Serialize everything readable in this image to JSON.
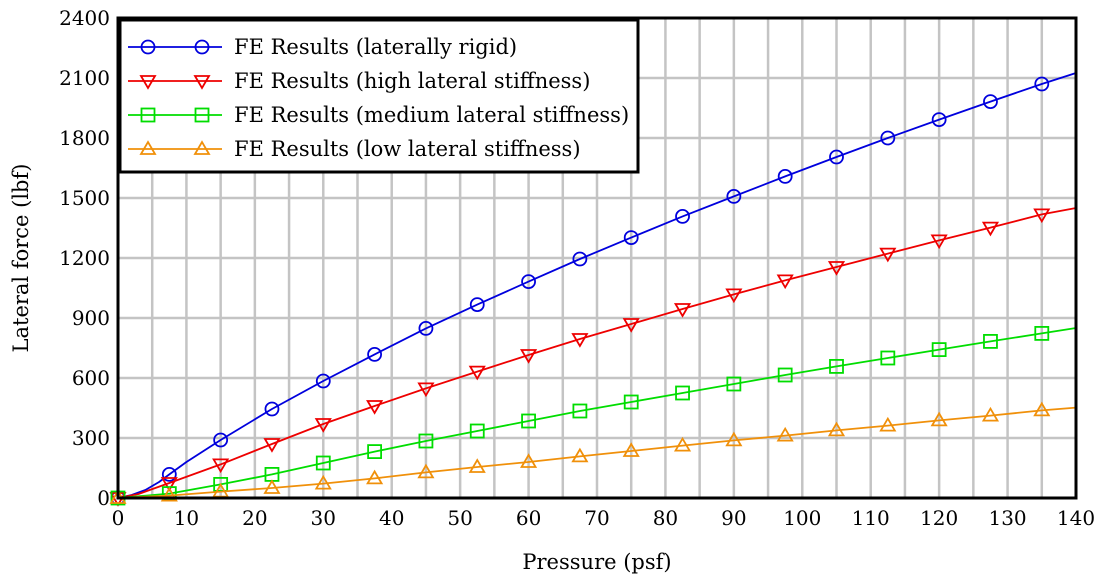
{
  "chart_data": {
    "type": "line",
    "xlabel": "Pressure (psf)",
    "ylabel": "Lateral force (lbf)",
    "xlim": [
      0,
      140
    ],
    "ylim": [
      0,
      2400
    ],
    "x_ticks": [
      0,
      10,
      20,
      30,
      40,
      50,
      60,
      70,
      80,
      90,
      100,
      110,
      120,
      130,
      140
    ],
    "y_ticks": [
      0,
      300,
      600,
      900,
      1200,
      1500,
      1800,
      2100,
      2400
    ],
    "x_minor_step": 5,
    "grid": true,
    "legend_position": "top-left",
    "series": [
      {
        "name": "FE Results (laterally rigid)",
        "color": "#0000dd",
        "marker": "circle",
        "line": [
          [
            0,
            0
          ],
          [
            2,
            15
          ],
          [
            4,
            40
          ],
          [
            6,
            80
          ],
          [
            7.5,
            118
          ],
          [
            10,
            180
          ],
          [
            15,
            290
          ],
          [
            22.5,
            445
          ],
          [
            30,
            585
          ],
          [
            37.5,
            718
          ],
          [
            45,
            848
          ],
          [
            52.5,
            967
          ],
          [
            60,
            1082
          ],
          [
            67.5,
            1195
          ],
          [
            75,
            1302
          ],
          [
            82.5,
            1408
          ],
          [
            90,
            1508
          ],
          [
            97.5,
            1608
          ],
          [
            105,
            1705
          ],
          [
            112.5,
            1800
          ],
          [
            120,
            1892
          ],
          [
            127.5,
            1982
          ],
          [
            135,
            2070
          ],
          [
            140,
            2125
          ]
        ],
        "points": [
          [
            0,
            0
          ],
          [
            7.5,
            118
          ],
          [
            15,
            290
          ],
          [
            22.5,
            445
          ],
          [
            30,
            585
          ],
          [
            37.5,
            718
          ],
          [
            45,
            848
          ],
          [
            52.5,
            967
          ],
          [
            60,
            1082
          ],
          [
            67.5,
            1195
          ],
          [
            75,
            1302
          ],
          [
            82.5,
            1408
          ],
          [
            90,
            1508
          ],
          [
            97.5,
            1608
          ],
          [
            105,
            1705
          ],
          [
            112.5,
            1800
          ],
          [
            120,
            1892
          ],
          [
            127.5,
            1982
          ],
          [
            135,
            2070
          ]
        ]
      },
      {
        "name": "FE Results (high lateral stiffness)",
        "color": "#ee0000",
        "marker": "triangle-down",
        "line": [
          [
            0,
            0
          ],
          [
            3,
            20
          ],
          [
            7.5,
            75
          ],
          [
            15,
            168
          ],
          [
            22.5,
            270
          ],
          [
            30,
            370
          ],
          [
            37.5,
            460
          ],
          [
            45,
            548
          ],
          [
            52.5,
            632
          ],
          [
            60,
            715
          ],
          [
            67.5,
            795
          ],
          [
            75,
            870
          ],
          [
            82.5,
            945
          ],
          [
            90,
            1018
          ],
          [
            97.5,
            1088
          ],
          [
            105,
            1155
          ],
          [
            112.5,
            1222
          ],
          [
            120,
            1288
          ],
          [
            127.5,
            1352
          ],
          [
            135,
            1418
          ],
          [
            140,
            1450
          ]
        ],
        "points": [
          [
            0,
            0
          ],
          [
            7.5,
            75
          ],
          [
            15,
            168
          ],
          [
            22.5,
            270
          ],
          [
            30,
            370
          ],
          [
            37.5,
            460
          ],
          [
            45,
            548
          ],
          [
            52.5,
            632
          ],
          [
            60,
            715
          ],
          [
            67.5,
            795
          ],
          [
            75,
            870
          ],
          [
            82.5,
            945
          ],
          [
            90,
            1018
          ],
          [
            97.5,
            1088
          ],
          [
            105,
            1155
          ],
          [
            112.5,
            1222
          ],
          [
            120,
            1288
          ],
          [
            127.5,
            1352
          ],
          [
            135,
            1418
          ]
        ]
      },
      {
        "name": "FE Results (medium lateral stiffness)",
        "color": "#00dd00",
        "marker": "square",
        "line": [
          [
            0,
            0
          ],
          [
            7.5,
            22
          ],
          [
            15,
            68
          ],
          [
            22.5,
            118
          ],
          [
            30,
            175
          ],
          [
            37.5,
            232
          ],
          [
            45,
            285
          ],
          [
            52.5,
            335
          ],
          [
            60,
            385
          ],
          [
            67.5,
            435
          ],
          [
            75,
            480
          ],
          [
            82.5,
            525
          ],
          [
            90,
            570
          ],
          [
            97.5,
            615
          ],
          [
            105,
            658
          ],
          [
            112.5,
            700
          ],
          [
            120,
            742
          ],
          [
            127.5,
            783
          ],
          [
            135,
            823
          ],
          [
            140,
            850
          ]
        ],
        "points": [
          [
            0,
            0
          ],
          [
            7.5,
            22
          ],
          [
            15,
            68
          ],
          [
            22.5,
            118
          ],
          [
            30,
            175
          ],
          [
            37.5,
            232
          ],
          [
            45,
            285
          ],
          [
            52.5,
            335
          ],
          [
            60,
            385
          ],
          [
            67.5,
            435
          ],
          [
            75,
            480
          ],
          [
            82.5,
            525
          ],
          [
            90,
            570
          ],
          [
            97.5,
            615
          ],
          [
            105,
            658
          ],
          [
            112.5,
            700
          ],
          [
            120,
            742
          ],
          [
            127.5,
            783
          ],
          [
            135,
            823
          ]
        ]
      },
      {
        "name": "FE Results (low lateral stiffness)",
        "color": "#f0900a",
        "marker": "triangle-up",
        "line": [
          [
            0,
            0
          ],
          [
            7.5,
            12
          ],
          [
            15,
            32
          ],
          [
            22.5,
            50
          ],
          [
            30,
            72
          ],
          [
            37.5,
            98
          ],
          [
            45,
            128
          ],
          [
            52.5,
            155
          ],
          [
            60,
            180
          ],
          [
            67.5,
            208
          ],
          [
            75,
            235
          ],
          [
            82.5,
            262
          ],
          [
            90,
            288
          ],
          [
            97.5,
            312
          ],
          [
            105,
            338
          ],
          [
            112.5,
            362
          ],
          [
            120,
            388
          ],
          [
            127.5,
            412
          ],
          [
            135,
            438
          ],
          [
            140,
            452
          ]
        ],
        "points": [
          [
            0,
            0
          ],
          [
            7.5,
            12
          ],
          [
            15,
            32
          ],
          [
            22.5,
            50
          ],
          [
            30,
            72
          ],
          [
            37.5,
            98
          ],
          [
            45,
            128
          ],
          [
            52.5,
            155
          ],
          [
            60,
            180
          ],
          [
            67.5,
            208
          ],
          [
            75,
            235
          ],
          [
            82.5,
            262
          ],
          [
            90,
            288
          ],
          [
            97.5,
            312
          ],
          [
            105,
            338
          ],
          [
            112.5,
            362
          ],
          [
            120,
            388
          ],
          [
            127.5,
            412
          ],
          [
            135,
            438
          ]
        ]
      }
    ]
  }
}
